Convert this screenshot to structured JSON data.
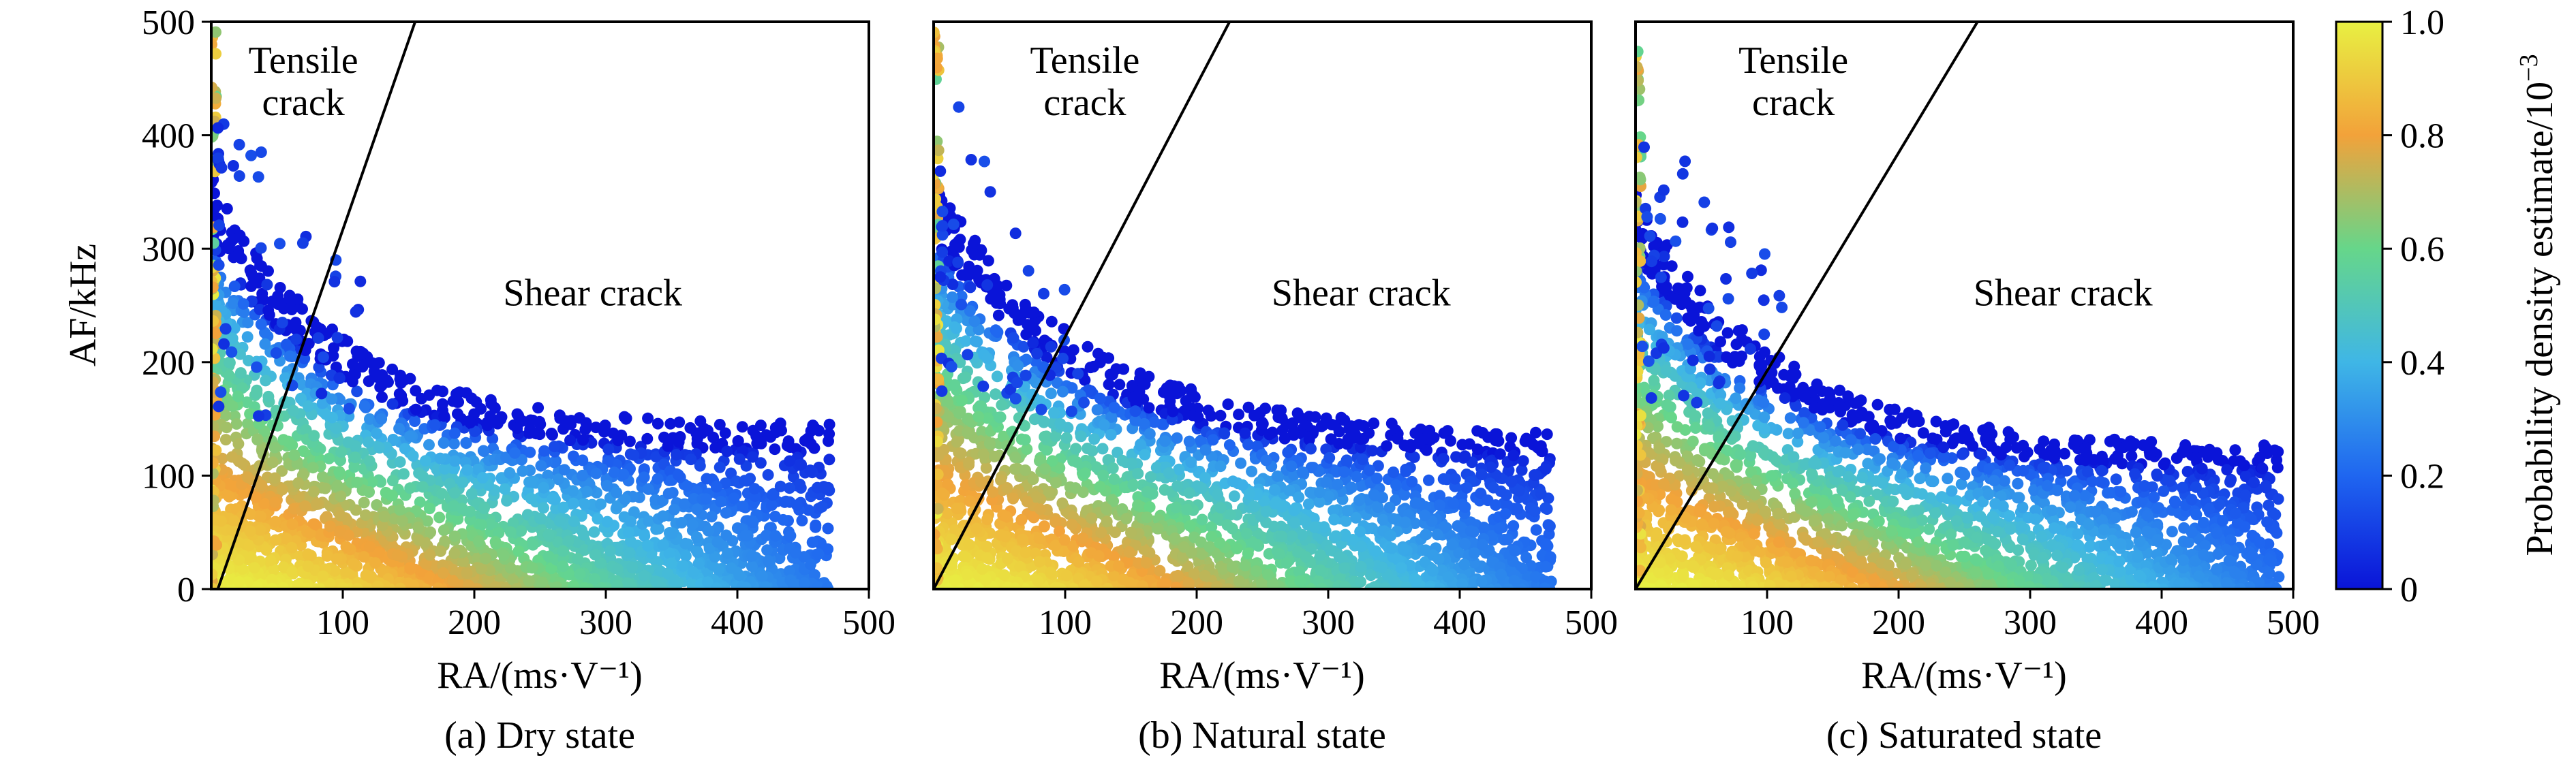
{
  "figure": {
    "colorbar": {
      "label": "Probability density estimate/10",
      "label_exponent": "−3",
      "range": [
        0,
        1.0
      ],
      "ticks": [
        "0",
        "0.2",
        "0.4",
        "0.6",
        "0.8",
        "1.0"
      ],
      "colors": [
        "#0a14d8",
        "#1f66f0",
        "#3fb6e6",
        "#66d68a",
        "#f2a23a",
        "#e8f042"
      ]
    },
    "y_axis_label": "AF/kHz",
    "x_axis_label": "RA/(ms·V⁻¹)"
  },
  "chart_data": [
    {
      "type": "scatter",
      "panel": "a",
      "caption": "(a) Dry state",
      "xlabel": "RA/(ms·V⁻¹)",
      "ylabel": "AF/kHz",
      "xlim": [
        0,
        500
      ],
      "ylim": [
        0,
        500
      ],
      "xticks": [
        100,
        200,
        300,
        400,
        500
      ],
      "yticks": [
        0,
        100,
        200,
        300,
        400,
        500
      ],
      "region_labels": {
        "tensile": [
          "Tensile",
          "crack"
        ],
        "shear": "Shear crack"
      },
      "divider_line": {
        "x": [
          5,
          155
        ],
        "y": [
          0,
          500
        ]
      },
      "tensile_label_at": [
        70,
        455
      ],
      "shear_label_at": [
        290,
        250
      ],
      "cloud": {
        "max_ra": 470,
        "decay": 95,
        "core_af": 115,
        "spread": 180,
        "max_af": 500
      }
    },
    {
      "type": "scatter",
      "panel": "b",
      "caption": "(b) Natural state",
      "xlabel": "RA/(ms·V⁻¹)",
      "ylabel": "",
      "xlim": [
        0,
        500
      ],
      "ylim": [
        0,
        500
      ],
      "xticks": [
        100,
        200,
        300,
        400,
        500
      ],
      "yticks": [],
      "region_labels": {
        "tensile": [
          "Tensile",
          "crack"
        ],
        "shear": "Shear crack"
      },
      "divider_line": {
        "x": [
          0,
          225
        ],
        "y": [
          0,
          500
        ]
      },
      "tensile_label_at": [
        115,
        455
      ],
      "shear_label_at": [
        325,
        250
      ],
      "cloud": {
        "max_ra": 470,
        "decay": 110,
        "core_af": 110,
        "spread": 185,
        "max_af": 500
      }
    },
    {
      "type": "scatter",
      "panel": "c",
      "caption": "(c) Saturated state",
      "xlabel": "RA/(ms·V⁻¹)",
      "ylabel": "",
      "xlim": [
        0,
        500
      ],
      "ylim": [
        0,
        500
      ],
      "xticks": [
        100,
        200,
        300,
        400,
        500
      ],
      "yticks": [],
      "region_labels": {
        "tensile": [
          "Tensile",
          "crack"
        ],
        "shear": "Shear crack"
      },
      "divider_line": {
        "x": [
          0,
          260
        ],
        "y": [
          0,
          500
        ]
      },
      "tensile_label_at": [
        120,
        455
      ],
      "shear_label_at": [
        325,
        250
      ],
      "cloud": {
        "max_ra": 490,
        "decay": 105,
        "core_af": 100,
        "spread": 180,
        "max_af": 500
      }
    }
  ]
}
